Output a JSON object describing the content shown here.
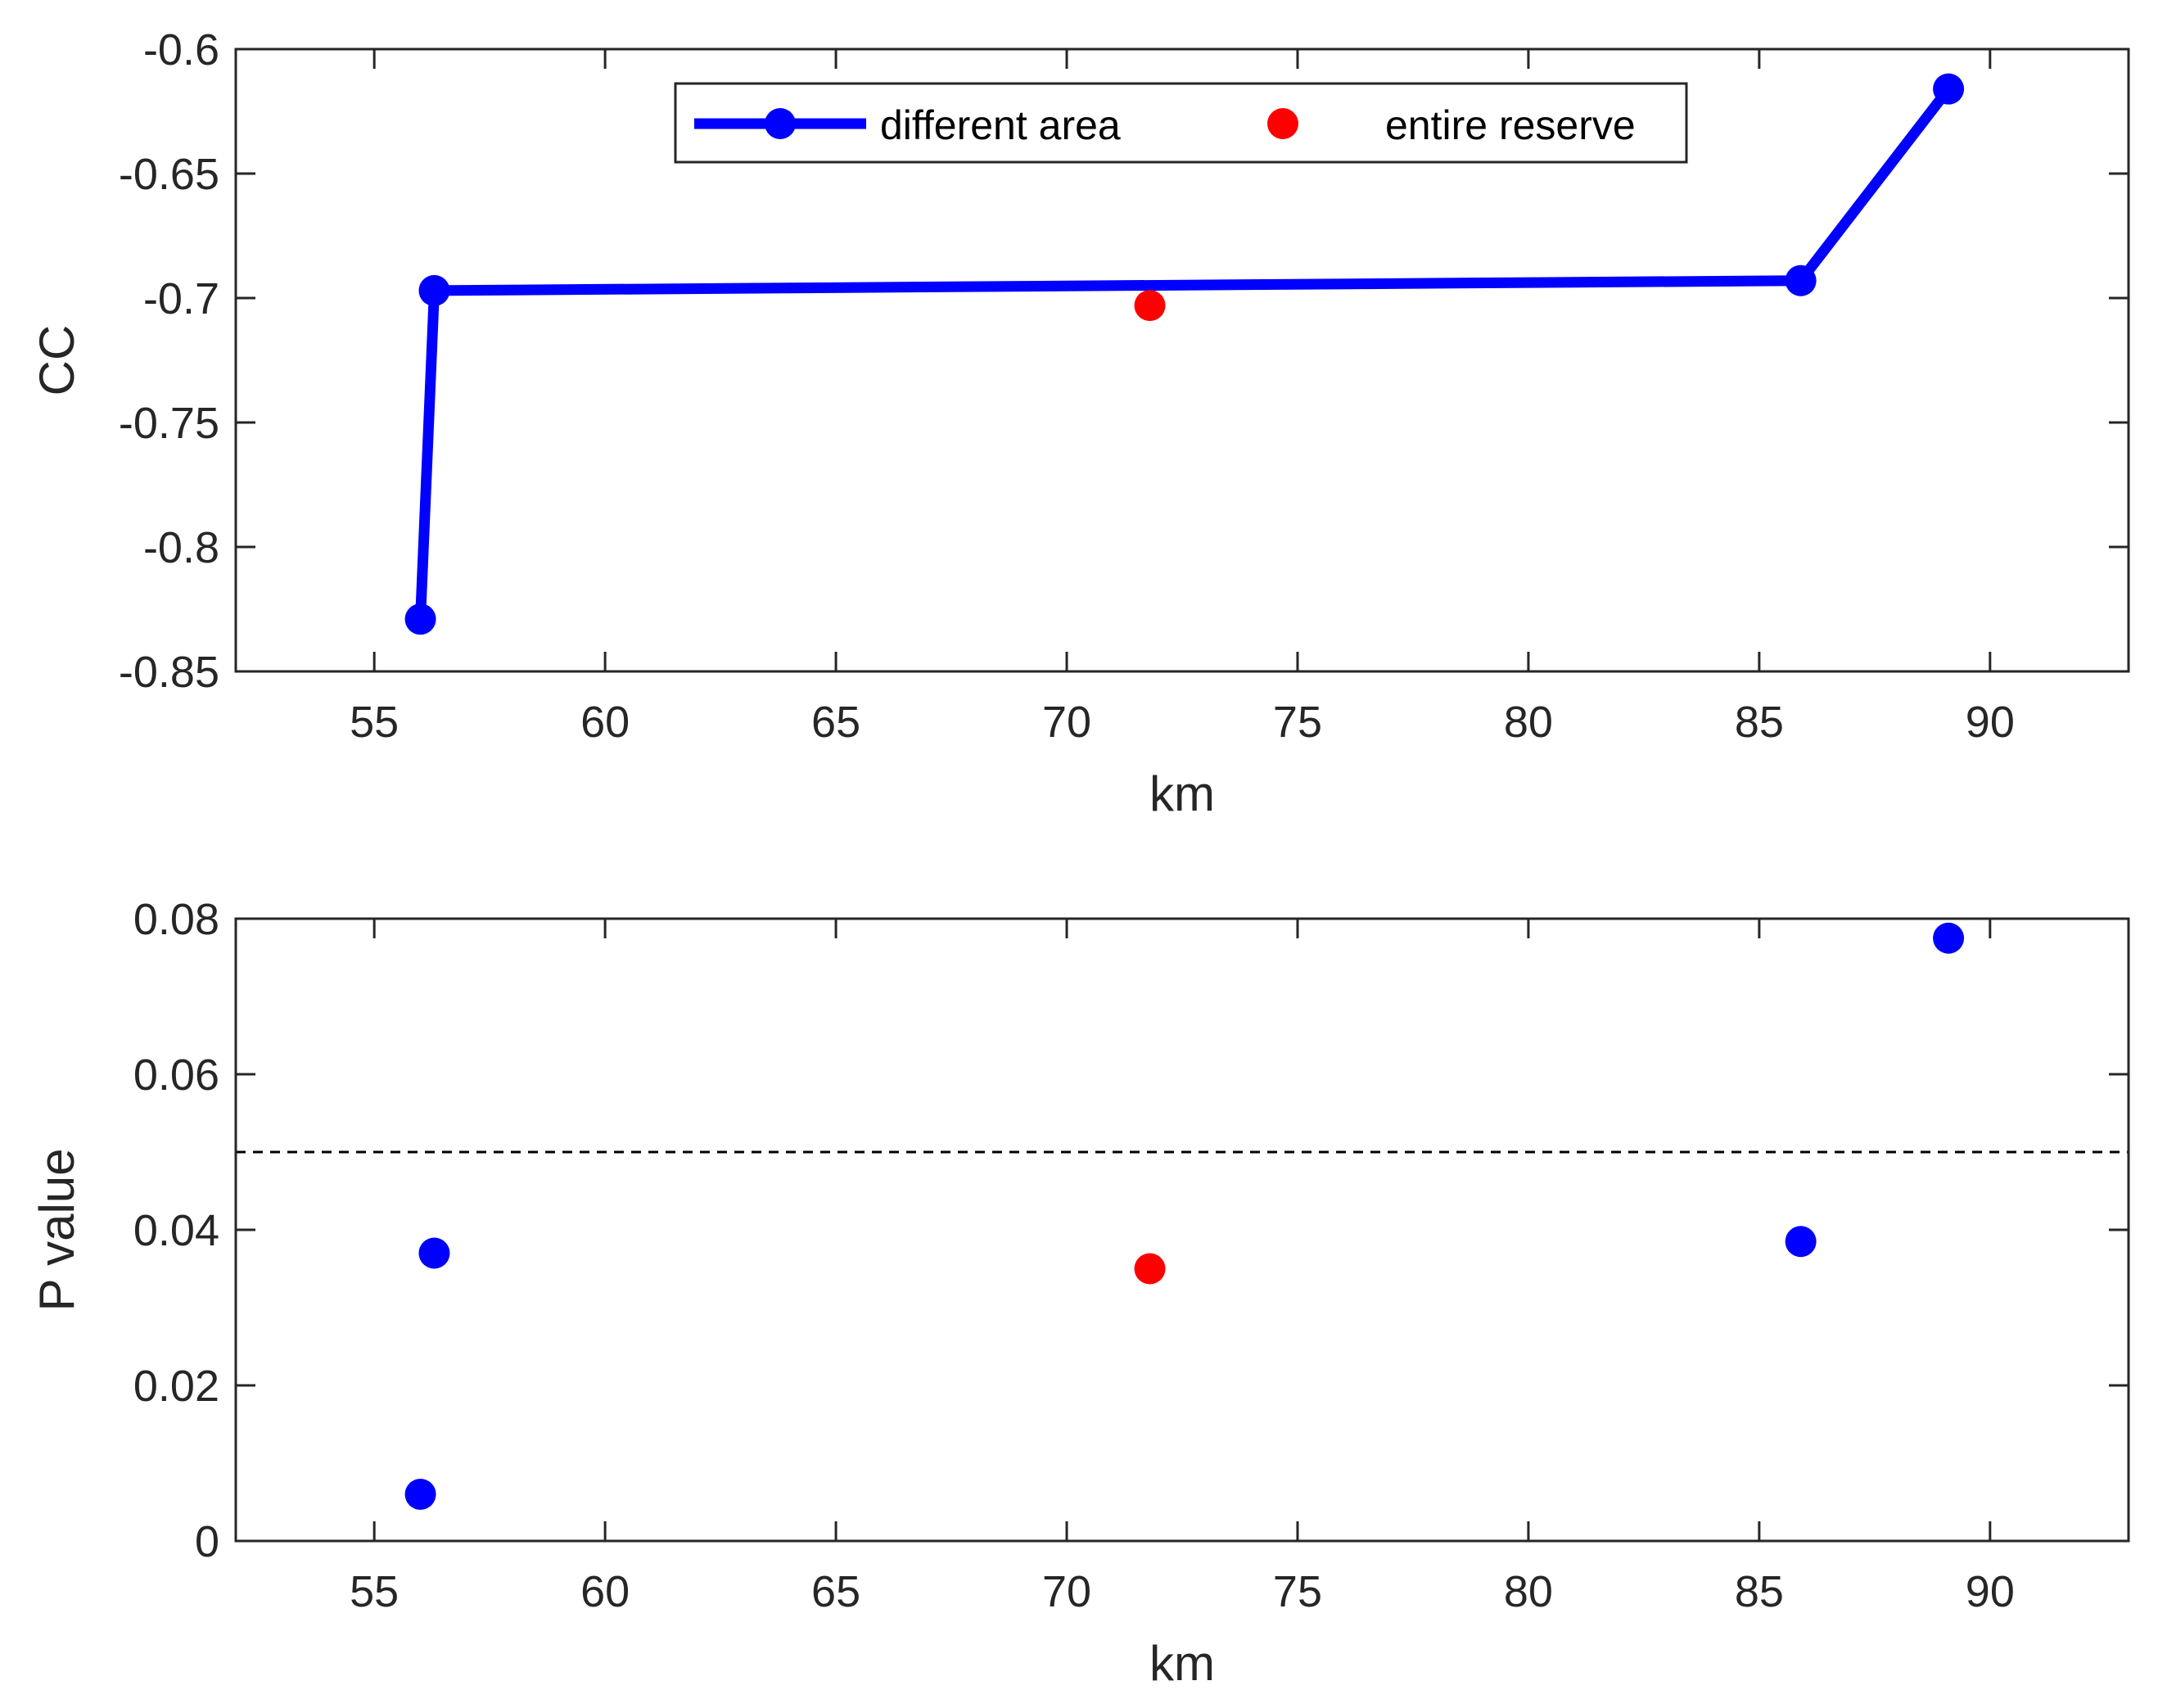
{
  "colors": {
    "series_blue": "#0000ff",
    "series_red": "#ff0000",
    "axis": "#262626",
    "threshold": "#000000"
  },
  "legend": {
    "different_area": "different area",
    "entire_reserve": "entire reserve"
  },
  "chart_data": [
    {
      "type": "line",
      "xlabel": "km",
      "ylabel": "CC",
      "xlim": [
        52,
        93
      ],
      "ylim": [
        -0.85,
        -0.6
      ],
      "xticks": [
        55,
        60,
        65,
        70,
        75,
        80,
        85,
        90
      ],
      "xtick_labels": [
        "55",
        "60",
        "65",
        "70",
        "75",
        "80",
        "85",
        "90"
      ],
      "yticks": [
        -0.85,
        -0.8,
        -0.75,
        -0.7,
        -0.65,
        -0.6
      ],
      "ytick_labels": [
        "-0.85",
        "-0.8",
        "-0.75",
        "-0.7",
        "-0.65",
        "-0.6"
      ],
      "legend_position": "top",
      "series": [
        {
          "name": "different area",
          "style": "line-markers",
          "x": [
            56.0,
            56.3,
            85.9,
            89.1
          ],
          "y": [
            -0.829,
            -0.697,
            -0.693,
            -0.616
          ]
        },
        {
          "name": "entire reserve",
          "style": "markers",
          "x": [
            71.8
          ],
          "y": [
            -0.703
          ]
        }
      ]
    },
    {
      "type": "scatter",
      "xlabel": "km",
      "ylabel": "P value",
      "xlim": [
        52,
        93
      ],
      "ylim": [
        0,
        0.08
      ],
      "xticks": [
        55,
        60,
        65,
        70,
        75,
        80,
        85,
        90
      ],
      "xtick_labels": [
        "55",
        "60",
        "65",
        "70",
        "75",
        "80",
        "85",
        "90"
      ],
      "yticks": [
        0,
        0.02,
        0.04,
        0.06,
        0.08
      ],
      "ytick_labels": [
        "0",
        "0.02",
        "0.04",
        "0.06",
        "0.08"
      ],
      "threshold_line": 0.05,
      "series": [
        {
          "name": "different area",
          "style": "markers",
          "x": [
            56.0,
            56.3,
            85.9,
            89.1
          ],
          "y": [
            0.006,
            0.037,
            0.0385,
            0.0775
          ]
        },
        {
          "name": "entire reserve",
          "style": "markers",
          "x": [
            71.8
          ],
          "y": [
            0.035
          ]
        }
      ]
    }
  ]
}
